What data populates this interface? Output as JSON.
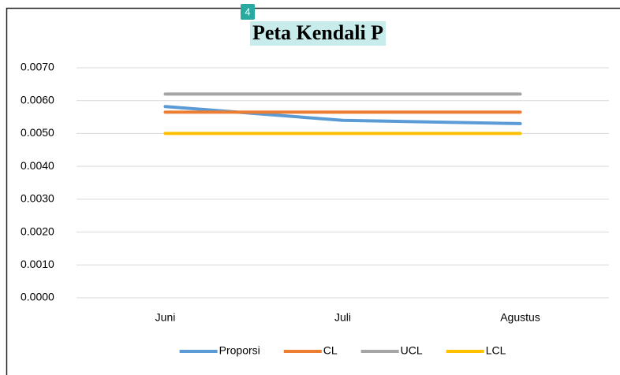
{
  "badge": "4",
  "chart_data": {
    "type": "line",
    "title": "Peta Kendali P",
    "categories": [
      "Juni",
      "Juli",
      "Agustus"
    ],
    "series": [
      {
        "name": "Proporsi",
        "color": "#5b9bd5",
        "values": [
          0.00582,
          0.0054,
          0.0053
        ]
      },
      {
        "name": "CL",
        "color": "#ed7d31",
        "values": [
          0.00565,
          0.00565,
          0.00565
        ]
      },
      {
        "name": "UCL",
        "color": "#a5a5a5",
        "values": [
          0.0062,
          0.0062,
          0.0062
        ]
      },
      {
        "name": "LCL",
        "color": "#ffc000",
        "values": [
          0.005,
          0.005,
          0.005
        ]
      }
    ],
    "ylim": [
      0,
      0.007
    ],
    "yticks": [
      {
        "value": 0,
        "label": "0.0000"
      },
      {
        "value": 0.001,
        "label": "0.0010"
      },
      {
        "value": 0.002,
        "label": "0.0020"
      },
      {
        "value": 0.003,
        "label": "0.0030"
      },
      {
        "value": 0.004,
        "label": "0.0040"
      },
      {
        "value": 0.005,
        "label": "0.0050"
      },
      {
        "value": 0.006,
        "label": "0.0060"
      },
      {
        "value": 0.007,
        "label": "0.0070"
      }
    ],
    "grid": true,
    "legend": "bottom"
  }
}
